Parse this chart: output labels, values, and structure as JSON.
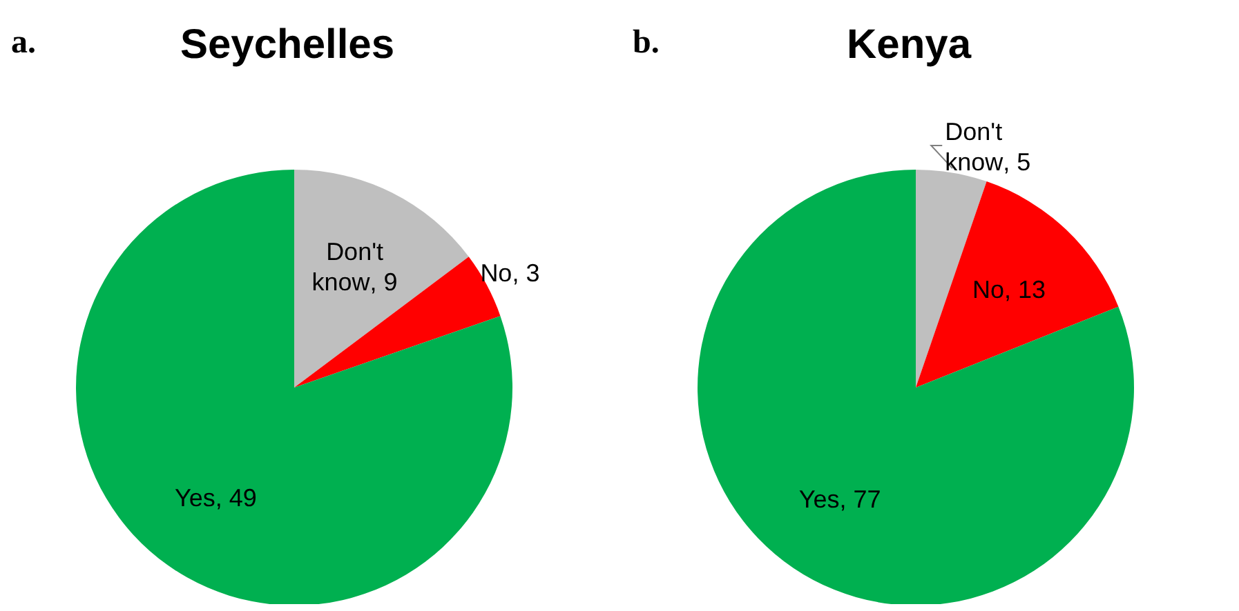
{
  "chart_data": [
    {
      "type": "pie",
      "title": "Seychelles",
      "annotations": [
        "a."
      ],
      "categories": [
        "Don't know",
        "No",
        "Yes"
      ],
      "values": [
        9,
        3,
        49
      ],
      "value_labels": [
        ", 9",
        ", 3",
        ", 49"
      ],
      "colors": [
        "#bfbfbf",
        "#ff0000",
        "#00b050"
      ],
      "legend": false
    },
    {
      "type": "pie",
      "title": "Kenya",
      "annotations": [
        "b."
      ],
      "categories": [
        "Don't know",
        "No",
        "Yes"
      ],
      "values": [
        5,
        13,
        77
      ],
      "value_labels": [
        ", 5",
        ", 13",
        ", 77"
      ],
      "colors": [
        "#bfbfbf",
        "#ff0000",
        "#00b050"
      ],
      "legend": false
    }
  ]
}
